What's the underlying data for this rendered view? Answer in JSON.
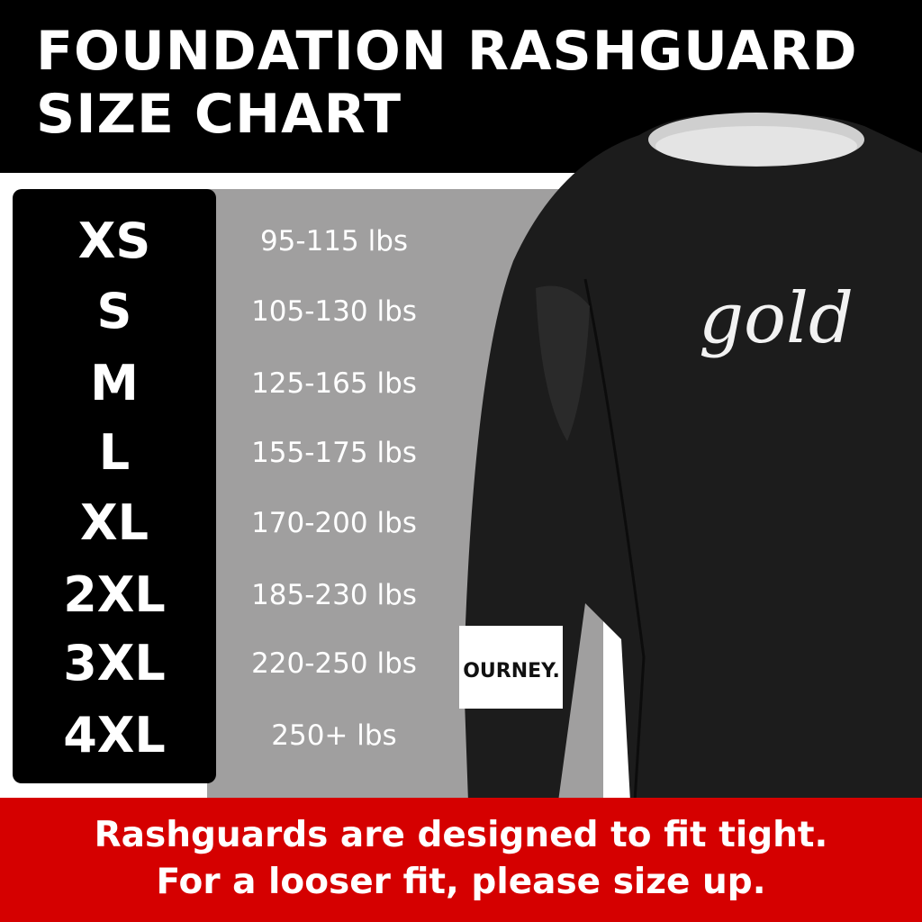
{
  "header": {
    "title_line1": "FOUNDATION RASHGUARD",
    "title_line2": "SIZE CHART"
  },
  "sizes": [
    {
      "size": "XS",
      "weight": "95-115 lbs"
    },
    {
      "size": "S",
      "weight": "105-130 lbs"
    },
    {
      "size": "M",
      "weight": "125-165 lbs"
    },
    {
      "size": "L",
      "weight": "155-175 lbs"
    },
    {
      "size": "XL",
      "weight": "170-200 lbs"
    },
    {
      "size": "2XL",
      "weight": "185-230 lbs"
    },
    {
      "size": "3XL",
      "weight": "220-250 lbs"
    },
    {
      "size": "4XL",
      "weight": "250+ lbs"
    }
  ],
  "product": {
    "chest_logo": "gold",
    "sleeve_band_text": "OURNEY."
  },
  "footer": {
    "line1": "Rashguards are designed to fit tight.",
    "line2": "For a looser fit, please size up."
  },
  "colors": {
    "header": "#000000",
    "panel": "#a09f9f",
    "footer": "#d50000",
    "text": "#ffffff"
  }
}
